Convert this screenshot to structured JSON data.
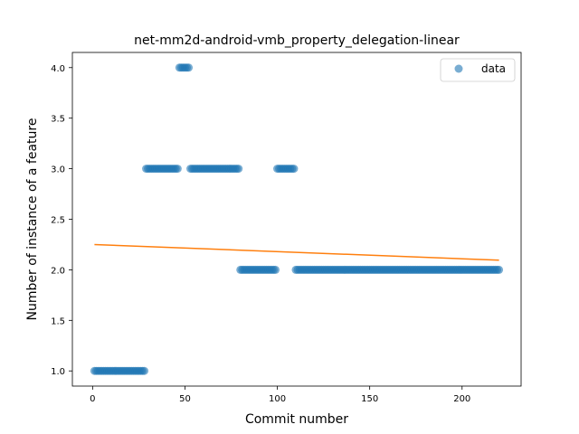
{
  "chart_data": {
    "type": "scatter",
    "title": "net-mm2d-android-vmb_property_delegation-linear",
    "xlabel": "Commit number",
    "ylabel": "Number of instance of a feature",
    "xlim": [
      -10.95,
      231.95
    ],
    "ylim": [
      0.85,
      4.15
    ],
    "xticks": [
      0,
      50,
      100,
      150,
      200
    ],
    "xtick_labels": [
      "0",
      "50",
      "100",
      "150",
      "200"
    ],
    "yticks": [
      1.0,
      1.5,
      2.0,
      2.5,
      3.0,
      3.5,
      4.0
    ],
    "ytick_labels": [
      "1.0",
      "1.5",
      "2.0",
      "2.5",
      "3.0",
      "3.5",
      "4.0"
    ],
    "grid": false,
    "legend_position": "top-right",
    "series": [
      {
        "name": "data",
        "kind": "scatter",
        "color": "#1f77b4",
        "alpha": 0.6,
        "segments": [
          {
            "x_from": 1,
            "x_to": 28,
            "y": 1
          },
          {
            "x_from": 29,
            "x_to": 46,
            "y": 3
          },
          {
            "x_from": 47,
            "x_to": 52,
            "y": 4
          },
          {
            "x_from": 53,
            "x_to": 79,
            "y": 3
          },
          {
            "x_from": 80,
            "x_to": 99,
            "y": 2
          },
          {
            "x_from": 100,
            "x_to": 109,
            "y": 3
          },
          {
            "x_from": 110,
            "x_to": 220,
            "y": 2
          }
        ]
      },
      {
        "name": "",
        "kind": "line",
        "color": "#ff7f0e",
        "x": [
          1,
          220
        ],
        "y": [
          2.25,
          2.095
        ]
      }
    ]
  }
}
